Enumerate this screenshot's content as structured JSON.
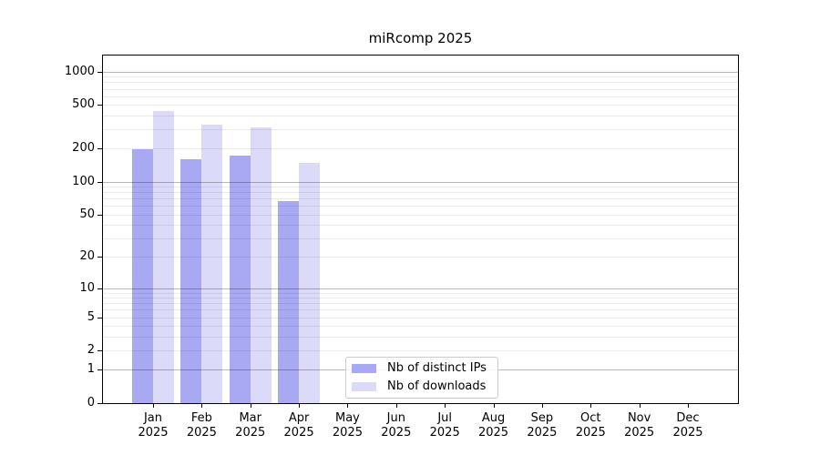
{
  "chart_data": {
    "type": "bar",
    "title": "miRcomp 2025",
    "x": {
      "categories": [
        "Jan",
        "Feb",
        "Mar",
        "Apr",
        "May",
        "Jun",
        "Jul",
        "Aug",
        "Sep",
        "Oct",
        "Nov",
        "Dec"
      ],
      "year_label": "2025"
    },
    "y_axis": {
      "scale": "log10(value+1)",
      "ticks": [
        1000,
        500,
        200,
        100,
        50,
        20,
        10,
        5,
        2,
        1,
        0
      ],
      "ymax": 1400
    },
    "series": [
      {
        "name": "Nb of distinct IPs",
        "color": "#a8a8f3",
        "values": [
          197,
          159,
          172,
          66,
          0,
          0,
          0,
          0,
          0,
          0,
          0,
          0
        ]
      },
      {
        "name": "Nb of downloads",
        "color": "#dbdbf9",
        "values": [
          443,
          331,
          313,
          148,
          0,
          0,
          0,
          0,
          0,
          0,
          0,
          0
        ]
      }
    ],
    "grid": {
      "major_values": [
        1,
        10,
        100,
        1000
      ],
      "minor_values": [
        2,
        3,
        4,
        5,
        6,
        7,
        8,
        9,
        20,
        30,
        40,
        50,
        60,
        70,
        80,
        90,
        200,
        300,
        400,
        500,
        600,
        700,
        800,
        900
      ],
      "major_color": "rgba(0,0,0,0.28)",
      "minor_color": "rgba(0,0,0,0.08)"
    },
    "legend": {
      "position": "lower center",
      "items": [
        "Nb of distinct IPs",
        "Nb of downloads"
      ]
    }
  }
}
